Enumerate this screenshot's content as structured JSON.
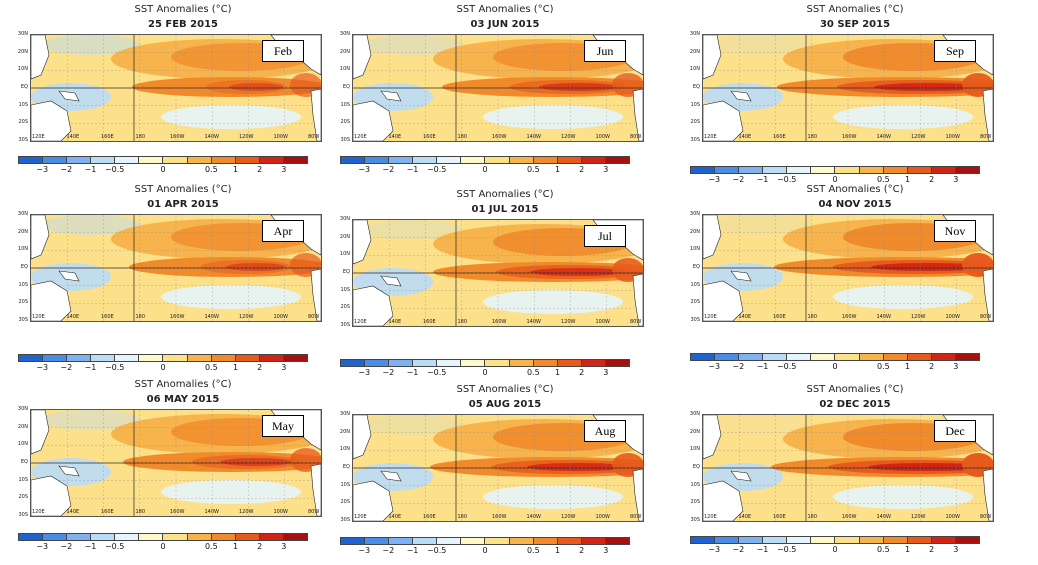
{
  "colors": {
    "neg3": "#1f63d0",
    "neg2": "#4a8ce6",
    "neg1": "#7fb2f0",
    "neg05": "#b9dcf7",
    "neg0": "#e6f5fb",
    "pos0": "#fff8c8",
    "pos05": "#fde08a",
    "pos1": "#f7b44d",
    "pos15": "#f08a2a",
    "pos2": "#e65a1c",
    "pos25": "#d22414",
    "pos3": "#a80f0f"
  },
  "lat_labels": [
    "30N",
    "20N",
    "10N",
    "EQ",
    "10S",
    "20S",
    "30S"
  ],
  "lon_labels": [
    "120E",
    "140E",
    "160E",
    "180",
    "160W",
    "140W",
    "120W",
    "100W",
    "80W"
  ],
  "colorbar_ticks": [
    "−3",
    "−2",
    "−1",
    "−0.5",
    "0",
    "0.5",
    "1",
    "2",
    "3"
  ],
  "panels": [
    {
      "title": "SST Anomalies (°C)",
      "date": "25 FEB 2015",
      "month": "Feb",
      "intensity": 0.45
    },
    {
      "title": "SST Anomalies (°C)",
      "date": "03 JUN 2015",
      "month": "Jun",
      "intensity": 0.65
    },
    {
      "title": "SST Anomalies (°C)",
      "date": "30 SEP 2015",
      "month": "Sep",
      "intensity": 0.9
    },
    {
      "title": "SST Anomalies (°C)",
      "date": "01 APR 2015",
      "month": "Apr",
      "intensity": 0.5
    },
    {
      "title": "SST Anomalies (°C)",
      "date": "01 JUL 2015",
      "month": "Jul",
      "intensity": 0.8
    },
    {
      "title": "SST Anomalies (°C)",
      "date": "04 NOV 2015",
      "month": "Nov",
      "intensity": 0.95
    },
    {
      "title": "SST Anomalies (°C)",
      "date": "06 MAY 2015",
      "month": "May",
      "intensity": 0.6
    },
    {
      "title": "SST Anomalies (°C)",
      "date": "05 AUG 2015",
      "month": "Aug",
      "intensity": 0.85
    },
    {
      "title": "SST Anomalies (°C)",
      "date": "02 DEC 2015",
      "month": "Dec",
      "intensity": 1.0
    }
  ]
}
